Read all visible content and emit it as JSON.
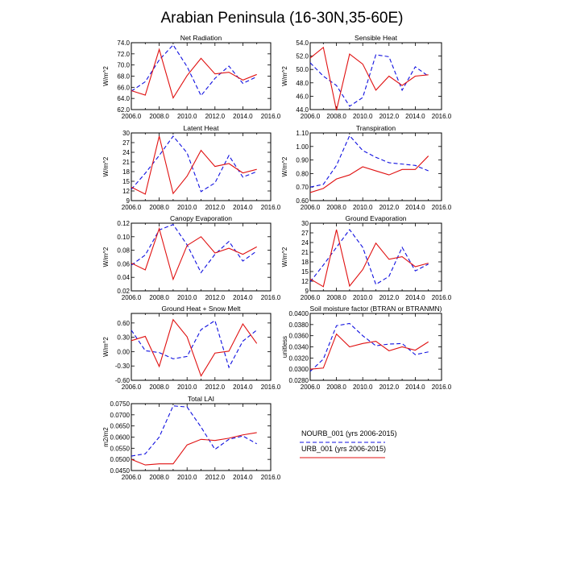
{
  "page_title": "Arabian Peninsula (16-30N,35-60E)",
  "legend": {
    "items": [
      {
        "label": "NOURB_001 (yrs 2006-2015)",
        "color": "#1010e0",
        "dash": true
      },
      {
        "label": "URB_001 (yrs 2006-2015)",
        "color": "#e01010",
        "dash": false
      }
    ]
  },
  "chart_data": [
    {
      "type": "line",
      "title": "Net Radiation",
      "ylabel": "W/m^2",
      "xlim": [
        2006,
        2016
      ],
      "xticks": [
        "2006.0",
        "2008.0",
        "2010.0",
        "2012.0",
        "2014.0",
        "2016.0"
      ],
      "ylim": [
        62,
        74
      ],
      "yticks": [
        "62.0",
        "64.0",
        "66.0",
        "68.0",
        "70.0",
        "72.0",
        "74.0"
      ],
      "grid": false,
      "x": [
        2006,
        2007,
        2008,
        2009,
        2010,
        2011,
        2012,
        2013,
        2014,
        2015
      ],
      "series": [
        {
          "name": "NOURB_001 (yrs 2006-2015)",
          "color": "#1010e0",
          "dash": true,
          "values": [
            65.3,
            67.0,
            70.9,
            73.6,
            69.7,
            64.5,
            67.6,
            69.8,
            66.7,
            67.9
          ]
        },
        {
          "name": "URB_001 (yrs 2006-2015)",
          "color": "#e01010",
          "dash": false,
          "values": [
            65.4,
            64.6,
            72.8,
            64.1,
            68.1,
            71.2,
            68.4,
            68.7,
            67.3,
            68.3
          ]
        }
      ]
    },
    {
      "type": "line",
      "title": "Sensible Heat",
      "ylabel": "W/m^2",
      "xlim": [
        2006,
        2016
      ],
      "xticks": [
        "2006.0",
        "2008.0",
        "2010.0",
        "2012.0",
        "2014.0",
        "2016.0"
      ],
      "ylim": [
        44,
        54
      ],
      "yticks": [
        "44.0",
        "46.0",
        "48.0",
        "50.0",
        "52.0",
        "54.0"
      ],
      "grid": false,
      "x": [
        2006,
        2007,
        2008,
        2009,
        2010,
        2011,
        2012,
        2013,
        2014,
        2015
      ],
      "series": [
        {
          "name": "NOURB_001 (yrs 2006-2015)",
          "color": "#1010e0",
          "dash": true,
          "values": [
            51.0,
            49.0,
            47.6,
            44.5,
            45.8,
            52.2,
            51.9,
            46.9,
            50.4,
            49.0
          ]
        },
        {
          "name": "URB_001 (yrs 2006-2015)",
          "color": "#e01010",
          "dash": false,
          "values": [
            51.7,
            53.3,
            43.9,
            52.3,
            50.8,
            46.9,
            49.0,
            47.6,
            49.0,
            49.2
          ]
        }
      ]
    },
    {
      "type": "line",
      "title": "Latent Heat",
      "ylabel": "W/m^2",
      "xlim": [
        2006,
        2016
      ],
      "xticks": [
        "2006.0",
        "2008.0",
        "2010.0",
        "2012.0",
        "2014.0",
        "2016.0"
      ],
      "ylim": [
        9,
        30
      ],
      "yticks": [
        "9",
        "12",
        "15",
        "18",
        "21",
        "24",
        "27",
        "30"
      ],
      "grid": false,
      "x": [
        2006,
        2007,
        2008,
        2009,
        2010,
        2011,
        2012,
        2013,
        2014,
        2015
      ],
      "series": [
        {
          "name": "NOURB_001 (yrs 2006-2015)",
          "color": "#1010e0",
          "dash": true,
          "values": [
            12.5,
            17.5,
            23.0,
            29.0,
            23.8,
            11.8,
            14.5,
            23.0,
            16.3,
            18.0
          ]
        },
        {
          "name": "URB_001 (yrs 2006-2015)",
          "color": "#e01010",
          "dash": false,
          "values": [
            13.2,
            11.0,
            29.0,
            11.2,
            16.6,
            24.6,
            19.6,
            20.5,
            17.6,
            18.7
          ]
        }
      ]
    },
    {
      "type": "line",
      "title": "Transpiration",
      "ylabel": "W/m^2",
      "xlim": [
        2006,
        2016
      ],
      "xticks": [
        "2006.0",
        "2008.0",
        "2010.0",
        "2012.0",
        "2014.0",
        "2016.0"
      ],
      "ylim": [
        0.6,
        1.1
      ],
      "yticks": [
        "0.60",
        "0.70",
        "0.80",
        "0.90",
        "1.00",
        "1.10"
      ],
      "grid": false,
      "x": [
        2006,
        2007,
        2008,
        2009,
        2010,
        2011,
        2012,
        2013,
        2014,
        2015
      ],
      "series": [
        {
          "name": "NOURB_001 (yrs 2006-2015)",
          "color": "#1010e0",
          "dash": true,
          "values": [
            0.7,
            0.72,
            0.86,
            1.08,
            0.97,
            0.92,
            0.88,
            0.87,
            0.86,
            0.82
          ]
        },
        {
          "name": "URB_001 (yrs 2006-2015)",
          "color": "#e01010",
          "dash": false,
          "values": [
            0.66,
            0.69,
            0.76,
            0.79,
            0.85,
            0.82,
            0.79,
            0.83,
            0.83,
            0.93
          ]
        }
      ]
    },
    {
      "type": "line",
      "title": "Canopy Evaporation",
      "ylabel": "W/m^2",
      "xlim": [
        2006,
        2016
      ],
      "xticks": [
        "2006.0",
        "2008.0",
        "2010.0",
        "2012.0",
        "2014.0",
        "2016.0"
      ],
      "ylim": [
        0.02,
        0.12
      ],
      "yticks": [
        "0.02",
        "0.04",
        "0.06",
        "0.08",
        "0.10",
        "0.12"
      ],
      "grid": false,
      "x": [
        2006,
        2007,
        2008,
        2009,
        2010,
        2011,
        2012,
        2013,
        2014,
        2015
      ],
      "series": [
        {
          "name": "NOURB_001 (yrs 2006-2015)",
          "color": "#1010e0",
          "dash": true,
          "values": [
            0.058,
            0.073,
            0.11,
            0.118,
            0.088,
            0.047,
            0.074,
            0.093,
            0.064,
            0.079
          ]
        },
        {
          "name": "URB_001 (yrs 2006-2015)",
          "color": "#e01010",
          "dash": false,
          "values": [
            0.061,
            0.051,
            0.112,
            0.037,
            0.087,
            0.1,
            0.076,
            0.083,
            0.074,
            0.085
          ]
        }
      ]
    },
    {
      "type": "line",
      "title": "Ground Evaporation",
      "ylabel": "W/m^2",
      "xlim": [
        2006,
        2016
      ],
      "xticks": [
        "2006.0",
        "2008.0",
        "2010.0",
        "2012.0",
        "2014.0",
        "2016.0"
      ],
      "ylim": [
        9,
        30
      ],
      "yticks": [
        "9",
        "12",
        "15",
        "18",
        "21",
        "24",
        "27",
        "30"
      ],
      "grid": false,
      "x": [
        2006,
        2007,
        2008,
        2009,
        2010,
        2011,
        2012,
        2013,
        2014,
        2015
      ],
      "series": [
        {
          "name": "NOURB_001 (yrs 2006-2015)",
          "color": "#1010e0",
          "dash": true,
          "values": [
            11.8,
            17.0,
            22.5,
            28.0,
            22.5,
            11.0,
            13.5,
            22.5,
            15.2,
            17.3
          ]
        },
        {
          "name": "URB_001 (yrs 2006-2015)",
          "color": "#e01010",
          "dash": false,
          "values": [
            12.7,
            10.3,
            28.0,
            10.5,
            15.6,
            23.8,
            18.8,
            19.6,
            16.5,
            17.6
          ]
        }
      ]
    },
    {
      "type": "line",
      "title": "Ground Heat + Snow Melt",
      "ylabel": "W/m^2",
      "xlim": [
        2006,
        2016
      ],
      "xticks": [
        "2006.0",
        "2008.0",
        "2010.0",
        "2012.0",
        "2014.0",
        "2016.0"
      ],
      "ylim": [
        -0.6,
        0.8
      ],
      "yticks": [
        "-0.60",
        "-0.30",
        "0.00",
        "0.30",
        "0.60"
      ],
      "grid": false,
      "x": [
        2006,
        2007,
        2008,
        2009,
        2010,
        2011,
        2012,
        2013,
        2014,
        2015
      ],
      "series": [
        {
          "name": "NOURB_001 (yrs 2006-2015)",
          "color": "#1010e0",
          "dash": true,
          "values": [
            0.45,
            0.02,
            -0.02,
            -0.15,
            -0.1,
            0.46,
            0.65,
            -0.33,
            0.22,
            0.45
          ]
        },
        {
          "name": "URB_001 (yrs 2006-2015)",
          "color": "#e01010",
          "dash": false,
          "values": [
            0.23,
            0.32,
            -0.31,
            0.67,
            0.31,
            -0.51,
            -0.03,
            0.01,
            0.58,
            0.17
          ]
        }
      ]
    },
    {
      "type": "line",
      "title": "Soil moisture factor (BTRAN or BTRANMN)",
      "ylabel": "unitless",
      "xlim": [
        2006,
        2016
      ],
      "xticks": [
        "2006.0",
        "2008.0",
        "2010.0",
        "2012.0",
        "2014.0",
        "2016.0"
      ],
      "ylim": [
        0.028,
        0.04
      ],
      "yticks": [
        "0.0280",
        "0.0300",
        "0.0320",
        "0.0340",
        "0.0360",
        "0.0380",
        "0.0400"
      ],
      "grid": false,
      "x": [
        2006,
        2007,
        2008,
        2009,
        2010,
        2011,
        2012,
        2013,
        2014,
        2015
      ],
      "series": [
        {
          "name": "NOURB_001 (yrs 2006-2015)",
          "color": "#1010e0",
          "dash": true,
          "values": [
            0.0296,
            0.0318,
            0.0378,
            0.0382,
            0.036,
            0.0342,
            0.0345,
            0.0346,
            0.0326,
            0.0331
          ]
        },
        {
          "name": "URB_001 (yrs 2006-2015)",
          "color": "#e01010",
          "dash": false,
          "values": [
            0.03,
            0.0302,
            0.0363,
            0.034,
            0.0346,
            0.035,
            0.0333,
            0.034,
            0.0334,
            0.0349
          ]
        }
      ]
    },
    {
      "type": "line",
      "title": "Total LAI",
      "ylabel": "m2/m2",
      "xlim": [
        2006,
        2016
      ],
      "xticks": [
        "2006.0",
        "2008.0",
        "2010.0",
        "2012.0",
        "2014.0",
        "2016.0"
      ],
      "ylim": [
        0.045,
        0.075
      ],
      "yticks": [
        "0.0450",
        "0.0500",
        "0.0550",
        "0.0600",
        "0.0650",
        "0.0700",
        "0.0750"
      ],
      "grid": false,
      "x": [
        2006,
        2007,
        2008,
        2009,
        2010,
        2011,
        2012,
        2013,
        2014,
        2015
      ],
      "series": [
        {
          "name": "NOURB_001 (yrs 2006-2015)",
          "color": "#1010e0",
          "dash": true,
          "values": [
            0.0515,
            0.0525,
            0.06,
            0.074,
            0.0735,
            0.0645,
            0.0545,
            0.059,
            0.0605,
            0.057
          ]
        },
        {
          "name": "URB_001 (yrs 2006-2015)",
          "color": "#e01010",
          "dash": false,
          "values": [
            0.05,
            0.0475,
            0.048,
            0.048,
            0.0565,
            0.059,
            0.0585,
            0.0595,
            0.061,
            0.062
          ]
        }
      ]
    }
  ]
}
